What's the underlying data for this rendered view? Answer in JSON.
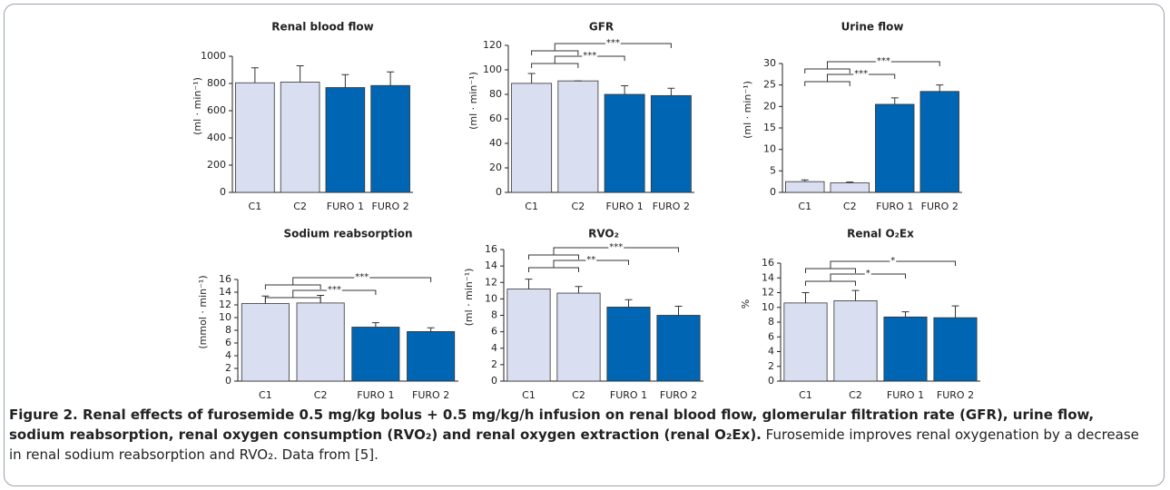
{
  "chart_data": [
    {
      "type": "bar",
      "title": "Renal blood flow",
      "ylabel": "(ml · min⁻¹)",
      "categories": [
        "C1",
        "C2",
        "FURO 1",
        "FURO 2"
      ],
      "values": [
        805,
        810,
        770,
        785
      ],
      "errors": [
        110,
        120,
        95,
        100
      ],
      "colors": [
        "#d9def0",
        "#d9def0",
        "#0066b3",
        "#0066b3"
      ],
      "ylim": [
        0,
        1000
      ],
      "yticks": [
        0,
        200,
        400,
        600,
        800,
        1000
      ],
      "comparisons": []
    },
    {
      "type": "bar",
      "title": "GFR",
      "ylabel": "(ml · min⁻¹)",
      "categories": [
        "C1",
        "C2",
        "FURO 1",
        "FURO 2"
      ],
      "values": [
        89,
        91,
        80,
        79
      ],
      "errors": [
        8,
        0,
        7,
        6
      ],
      "colors": [
        "#d9def0",
        "#d9def0",
        "#0066b3",
        "#0066b3"
      ],
      "ylim": [
        0,
        120
      ],
      "yticks": [
        0,
        20,
        40,
        60,
        80,
        100,
        120
      ],
      "comparisons": [
        {
          "groups": [
            "C1",
            "C2"
          ],
          "vs": "FURO 1",
          "label": "***"
        },
        {
          "groups": [
            "C1",
            "C2"
          ],
          "vs": "FURO 2",
          "label": "***"
        }
      ]
    },
    {
      "type": "bar",
      "title": "Urine flow",
      "ylabel": "(ml · min⁻¹)",
      "categories": [
        "C1",
        "C2",
        "FURO 1",
        "FURO 2"
      ],
      "values": [
        2.5,
        2.2,
        20.5,
        23.5
      ],
      "errors": [
        0.4,
        0.2,
        1.5,
        1.5
      ],
      "colors": [
        "#d9def0",
        "#d9def0",
        "#0066b3",
        "#0066b3"
      ],
      "ylim": [
        0,
        30
      ],
      "yticks": [
        0,
        5,
        10,
        15,
        20,
        25,
        30
      ],
      "comparisons": [
        {
          "groups": [
            "C1",
            "C2"
          ],
          "vs": "FURO 1",
          "label": "***"
        },
        {
          "groups": [
            "C1",
            "C2"
          ],
          "vs": "FURO 2",
          "label": "***"
        }
      ]
    },
    {
      "type": "bar",
      "title": "Sodium reabsorption",
      "ylabel": "(mmol · min⁻¹)",
      "categories": [
        "C1",
        "C2",
        "FURO 1",
        "FURO 2"
      ],
      "values": [
        12.2,
        12.3,
        8.5,
        7.8
      ],
      "errors": [
        1.2,
        1.2,
        0.7,
        0.6
      ],
      "colors": [
        "#d9def0",
        "#d9def0",
        "#0066b3",
        "#0066b3"
      ],
      "ylim": [
        0,
        16
      ],
      "yticks": [
        0,
        2,
        4,
        6,
        8,
        10,
        12,
        14,
        16
      ],
      "comparisons": [
        {
          "groups": [
            "C1",
            "C2"
          ],
          "vs": "FURO 1",
          "label": "***"
        },
        {
          "groups": [
            "C1",
            "C2"
          ],
          "vs": "FURO 2",
          "label": "***"
        }
      ]
    },
    {
      "type": "bar",
      "title": "RVO₂",
      "ylabel": "(ml · min⁻¹)",
      "categories": [
        "C1",
        "C2",
        "FURO 1",
        "FURO 2"
      ],
      "values": [
        11.2,
        10.7,
        9.0,
        8.0
      ],
      "errors": [
        1.2,
        0.8,
        0.9,
        1.1
      ],
      "colors": [
        "#d9def0",
        "#d9def0",
        "#0066b3",
        "#0066b3"
      ],
      "ylim": [
        0,
        16
      ],
      "yticks": [
        0,
        2,
        4,
        6,
        8,
        10,
        12,
        14,
        16
      ],
      "comparisons": [
        {
          "groups": [
            "C1",
            "C2"
          ],
          "vs": "FURO 1",
          "label": "**"
        },
        {
          "groups": [
            "C1",
            "C2"
          ],
          "vs": "FURO 2",
          "label": "***"
        }
      ]
    },
    {
      "type": "bar",
      "title": "Renal O₂Ex",
      "ylabel": "%",
      "categories": [
        "C1",
        "C2",
        "FURO 1",
        "FURO 2"
      ],
      "values": [
        10.6,
        10.9,
        8.7,
        8.6
      ],
      "errors": [
        1.4,
        1.4,
        0.7,
        1.6
      ],
      "colors": [
        "#d9def0",
        "#d9def0",
        "#0066b3",
        "#0066b3"
      ],
      "ylim": [
        0,
        16
      ],
      "yticks": [
        0,
        2,
        4,
        6,
        8,
        10,
        12,
        14,
        16
      ],
      "comparisons": [
        {
          "groups": [
            "C1",
            "C2"
          ],
          "vs": "FURO 1",
          "label": "*"
        },
        {
          "groups": [
            "C1",
            "C2"
          ],
          "vs": "FURO 2",
          "label": "*"
        }
      ]
    }
  ],
  "caption": {
    "bold": "Figure 2. Renal effects of furosemide 0.5 mg/kg bolus + 0.5 mg/kg/h infusion on renal blood flow, glomerular filtration rate (GFR), urine flow, sodium reabsorption, renal oxygen consumption (RVO₂) and renal oxygen extraction (renal O₂Ex).",
    "text": "Furosemide improves renal oxygenation by a decrease in renal sodium reabsorption and RVO₂. Data from [5]."
  }
}
